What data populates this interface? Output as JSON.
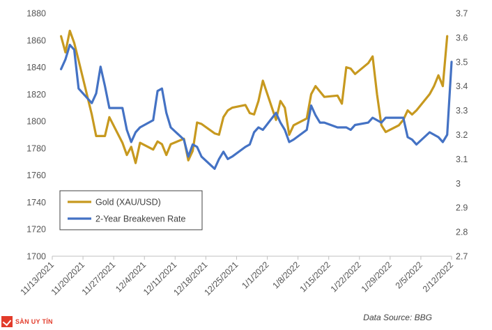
{
  "logo": {
    "text": "SÀN UY TÍN"
  },
  "source_note": "Data Source: BBG",
  "colors": {
    "gold": "#c7991f",
    "breakeven": "#4472c4",
    "grid": "#d9d9d9",
    "axis": "#bfbfbf"
  },
  "chart_data": {
    "type": "line",
    "title": "",
    "xlabel": "",
    "ylabel": "",
    "y_left": {
      "ylim": [
        1700,
        1880
      ],
      "ticks": [
        1700,
        1720,
        1740,
        1760,
        1780,
        1800,
        1820,
        1840,
        1860,
        1880
      ]
    },
    "y_right": {
      "ylim": [
        2.7,
        3.7
      ],
      "ticks": [
        "2.7",
        "2.8",
        "2.9",
        "3",
        "3.1",
        "3.2",
        "3.3",
        "3.4",
        "3.5",
        "3.6",
        "3.7"
      ]
    },
    "x_ticks": [
      "11/13/2021",
      "11/20/2021",
      "11/27/2021",
      "12/4/2021",
      "12/11/2021",
      "12/18/2021",
      "12/25/2021",
      "1/1/2022",
      "1/8/2022",
      "1/15/2022",
      "1/22/2022",
      "1/29/2022",
      "2/5/2022",
      "2/12/2022"
    ],
    "x_range": [
      "2021-11-13",
      "2022-02-12"
    ],
    "grid": "none",
    "legend_position": "lower-left",
    "series": [
      {
        "name": "Gold (XAU/USD)",
        "axis": "left",
        "points": [
          [
            "2021-11-15",
            1863
          ],
          [
            "2021-11-16",
            1851
          ],
          [
            "2021-11-17",
            1867
          ],
          [
            "2021-11-18",
            1858
          ],
          [
            "2021-11-19",
            1845
          ],
          [
            "2021-11-22",
            1805
          ],
          [
            "2021-11-23",
            1789
          ],
          [
            "2021-11-24",
            1789
          ],
          [
            "2021-11-25",
            1789
          ],
          [
            "2021-11-26",
            1803
          ],
          [
            "2021-11-29",
            1784
          ],
          [
            "2021-11-30",
            1775
          ],
          [
            "2021-12-01",
            1781
          ],
          [
            "2021-12-02",
            1769
          ],
          [
            "2021-12-03",
            1784
          ],
          [
            "2021-12-06",
            1779
          ],
          [
            "2021-12-07",
            1785
          ],
          [
            "2021-12-08",
            1783
          ],
          [
            "2021-12-09",
            1775
          ],
          [
            "2021-12-10",
            1783
          ],
          [
            "2021-12-13",
            1787
          ],
          [
            "2021-12-14",
            1771
          ],
          [
            "2021-12-15",
            1778
          ],
          [
            "2021-12-16",
            1799
          ],
          [
            "2021-12-17",
            1798
          ],
          [
            "2021-12-20",
            1791
          ],
          [
            "2021-12-21",
            1790
          ],
          [
            "2021-12-22",
            1803
          ],
          [
            "2021-12-23",
            1808
          ],
          [
            "2021-12-24",
            1810
          ],
          [
            "2021-12-27",
            1812
          ],
          [
            "2021-12-28",
            1806
          ],
          [
            "2021-12-29",
            1805
          ],
          [
            "2021-12-30",
            1815
          ],
          [
            "2021-12-31",
            1830
          ],
          [
            "2022-01-03",
            1801
          ],
          [
            "2022-01-04",
            1815
          ],
          [
            "2022-01-05",
            1810
          ],
          [
            "2022-01-06",
            1790
          ],
          [
            "2022-01-07",
            1797
          ],
          [
            "2022-01-10",
            1802
          ],
          [
            "2022-01-11",
            1820
          ],
          [
            "2022-01-12",
            1826
          ],
          [
            "2022-01-13",
            1822
          ],
          [
            "2022-01-14",
            1818
          ],
          [
            "2022-01-17",
            1819
          ],
          [
            "2022-01-18",
            1813
          ],
          [
            "2022-01-19",
            1840
          ],
          [
            "2022-01-20",
            1839
          ],
          [
            "2022-01-21",
            1835
          ],
          [
            "2022-01-24",
            1843
          ],
          [
            "2022-01-25",
            1848
          ],
          [
            "2022-01-26",
            1820
          ],
          [
            "2022-01-27",
            1797
          ],
          [
            "2022-01-28",
            1792
          ],
          [
            "2022-01-31",
            1797
          ],
          [
            "2022-02-01",
            1801
          ],
          [
            "2022-02-02",
            1808
          ],
          [
            "2022-02-03",
            1805
          ],
          [
            "2022-02-04",
            1808
          ],
          [
            "2022-02-07",
            1820
          ],
          [
            "2022-02-08",
            1826
          ],
          [
            "2022-02-09",
            1834
          ],
          [
            "2022-02-10",
            1826
          ],
          [
            "2022-02-11",
            1863
          ]
        ]
      },
      {
        "name": "2-Year Breakeven Rate",
        "axis": "right",
        "points": [
          [
            "2021-11-15",
            3.47
          ],
          [
            "2021-11-16",
            3.51
          ],
          [
            "2021-11-17",
            3.57
          ],
          [
            "2021-11-18",
            3.55
          ],
          [
            "2021-11-19",
            3.39
          ],
          [
            "2021-11-22",
            3.33
          ],
          [
            "2021-11-23",
            3.37
          ],
          [
            "2021-11-24",
            3.48
          ],
          [
            "2021-11-25",
            3.4
          ],
          [
            "2021-11-26",
            3.31
          ],
          [
            "2021-11-29",
            3.31
          ],
          [
            "2021-11-30",
            3.22
          ],
          [
            "2021-12-01",
            3.17
          ],
          [
            "2021-12-02",
            3.21
          ],
          [
            "2021-12-03",
            3.23
          ],
          [
            "2021-12-06",
            3.26
          ],
          [
            "2021-12-07",
            3.38
          ],
          [
            "2021-12-08",
            3.39
          ],
          [
            "2021-12-09",
            3.29
          ],
          [
            "2021-12-10",
            3.23
          ],
          [
            "2021-12-13",
            3.18
          ],
          [
            "2021-12-14",
            3.11
          ],
          [
            "2021-12-15",
            3.16
          ],
          [
            "2021-12-16",
            3.15
          ],
          [
            "2021-12-17",
            3.11
          ],
          [
            "2021-12-20",
            3.06
          ],
          [
            "2021-12-21",
            3.1
          ],
          [
            "2021-12-22",
            3.13
          ],
          [
            "2021-12-23",
            3.1
          ],
          [
            "2021-12-24",
            3.11
          ],
          [
            "2021-12-27",
            3.15
          ],
          [
            "2021-12-28",
            3.16
          ],
          [
            "2021-12-29",
            3.21
          ],
          [
            "2021-12-30",
            3.23
          ],
          [
            "2021-12-31",
            3.22
          ],
          [
            "2022-01-03",
            3.29
          ],
          [
            "2022-01-04",
            3.25
          ],
          [
            "2022-01-05",
            3.22
          ],
          [
            "2022-01-06",
            3.17
          ],
          [
            "2022-01-07",
            3.18
          ],
          [
            "2022-01-10",
            3.22
          ],
          [
            "2022-01-11",
            3.32
          ],
          [
            "2022-01-12",
            3.28
          ],
          [
            "2022-01-13",
            3.25
          ],
          [
            "2022-01-14",
            3.25
          ],
          [
            "2022-01-17",
            3.23
          ],
          [
            "2022-01-18",
            3.23
          ],
          [
            "2022-01-19",
            3.23
          ],
          [
            "2022-01-20",
            3.22
          ],
          [
            "2022-01-21",
            3.24
          ],
          [
            "2022-01-24",
            3.25
          ],
          [
            "2022-01-25",
            3.27
          ],
          [
            "2022-01-26",
            3.26
          ],
          [
            "2022-01-27",
            3.25
          ],
          [
            "2022-01-28",
            3.27
          ],
          [
            "2022-01-31",
            3.27
          ],
          [
            "2022-02-01",
            3.27
          ],
          [
            "2022-02-02",
            3.19
          ],
          [
            "2022-02-03",
            3.18
          ],
          [
            "2022-02-04",
            3.16
          ],
          [
            "2022-02-07",
            3.21
          ],
          [
            "2022-02-08",
            3.2
          ],
          [
            "2022-02-09",
            3.19
          ],
          [
            "2022-02-10",
            3.17
          ],
          [
            "2022-02-11",
            3.2
          ],
          [
            "2022-02-12",
            3.5
          ]
        ]
      }
    ]
  }
}
